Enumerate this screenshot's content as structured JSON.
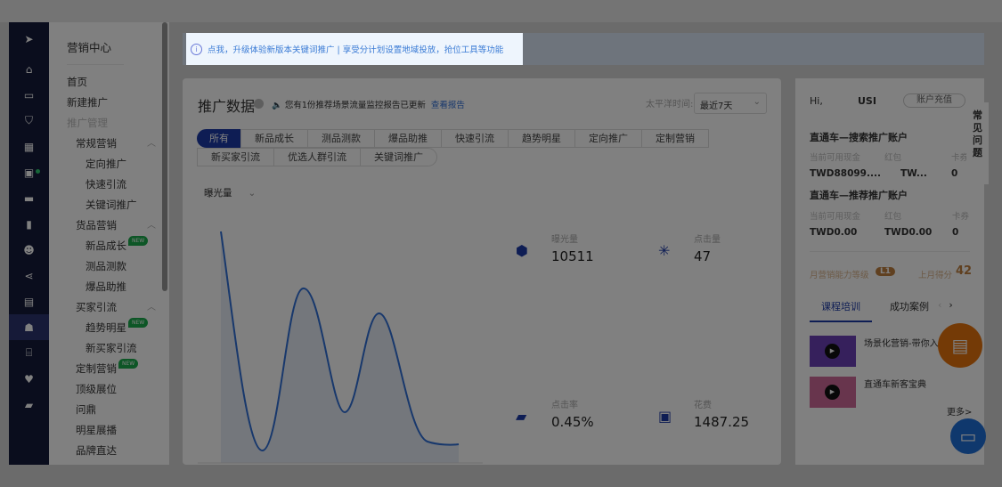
{
  "banner": {
    "text": "点我，升级体验新版本关键词推广 | 享受分计划设置地域投放，抢位工具等功能"
  },
  "iconbar": {
    "icons": [
      "navigation-icon",
      "home-icon",
      "store-icon",
      "shield-icon",
      "apps-icon",
      "video-icon",
      "chat-icon",
      "bar-chart-icon",
      "users-icon",
      "share-icon",
      "clipboard-icon",
      "marketing-icon",
      "bank-icon",
      "heart-icon",
      "briefcase-icon"
    ]
  },
  "menu": {
    "title": "营销中心",
    "items": [
      {
        "label": "首页",
        "level": 0
      },
      {
        "label": "新建推广",
        "level": 0
      },
      {
        "label": "推广管理",
        "level": 0,
        "disabled": true
      },
      {
        "label": "常规营销",
        "level": 1,
        "expanded": true
      },
      {
        "label": "定向推广",
        "level": 2
      },
      {
        "label": "快速引流",
        "level": 2
      },
      {
        "label": "关键词推广",
        "level": 2
      },
      {
        "label": "货品营销",
        "level": 1,
        "expanded": true
      },
      {
        "label": "新品成长",
        "level": 2,
        "badge": "NEW"
      },
      {
        "label": "测品测款",
        "level": 2
      },
      {
        "label": "爆品助推",
        "level": 2
      },
      {
        "label": "买家引流",
        "level": 1,
        "expanded": true
      },
      {
        "label": "趋势明星",
        "level": 2,
        "badge": "NEW"
      },
      {
        "label": "新买家引流",
        "level": 2
      },
      {
        "label": "定制营销",
        "level": 1,
        "badge": "NEW"
      },
      {
        "label": "顶级展位",
        "level": 1
      },
      {
        "label": "问鼎",
        "level": 1
      },
      {
        "label": "明星展播",
        "level": 1
      },
      {
        "label": "品牌直达",
        "level": 1
      }
    ]
  },
  "main": {
    "title": "推广数据",
    "notice": "您有1份推荐场景流量监控报告已更新",
    "notice_link": "查看报告",
    "timezone_label": "太平洋时间:",
    "range": "最近7天",
    "tabs_row1": [
      "所有",
      "新品成长",
      "测品测款",
      "爆品助推",
      "快速引流",
      "趋势明星",
      "定向推广",
      "定制营销"
    ],
    "tabs_row2": [
      "新买家引流",
      "优选人群引流",
      "关键词推广"
    ],
    "active_tab": "所有",
    "metric_select": "曝光量",
    "metrics": [
      {
        "label": "曝光量",
        "value": "10511",
        "icon": "cube-icon"
      },
      {
        "label": "点击量",
        "value": "47",
        "icon": "cursor-click-icon"
      },
      {
        "label": "点击率",
        "value": "0.45%",
        "icon": "briefcase-icon"
      },
      {
        "label": "花费",
        "value": "1487.25",
        "icon": "wallet-icon"
      }
    ]
  },
  "right": {
    "greeting": "Hi,",
    "user": "USI",
    "recharge": "账户充值",
    "search_account": {
      "title": "直通车—搜索推广账户",
      "labels": [
        "当前可用现金",
        "红包",
        "卡券"
      ],
      "values": [
        "TWD88099....",
        "TW...",
        "0"
      ]
    },
    "recommend_account": {
      "title": "直通车—推荐推广账户",
      "labels": [
        "当前可用现金",
        "红包",
        "卡券"
      ],
      "values": [
        "TWD0.00",
        "TWD0.00",
        "0"
      ]
    },
    "level_label": "月营销能力等级",
    "level": "L1",
    "score_label": "上月得分",
    "score": "42",
    "tabs": [
      "课程培训",
      "成功案例"
    ],
    "courses": [
      "场景化营销-带你入门",
      "直通车新客宝典"
    ],
    "more": "更多>"
  },
  "faq": "常见问题",
  "colors": {
    "accent": "#1c3aa8",
    "banner_text": "#3a7bd5",
    "new_badge": "#1aad4b",
    "fab_orange": "#e8730c",
    "fab_blue": "#1e6fd9"
  }
}
